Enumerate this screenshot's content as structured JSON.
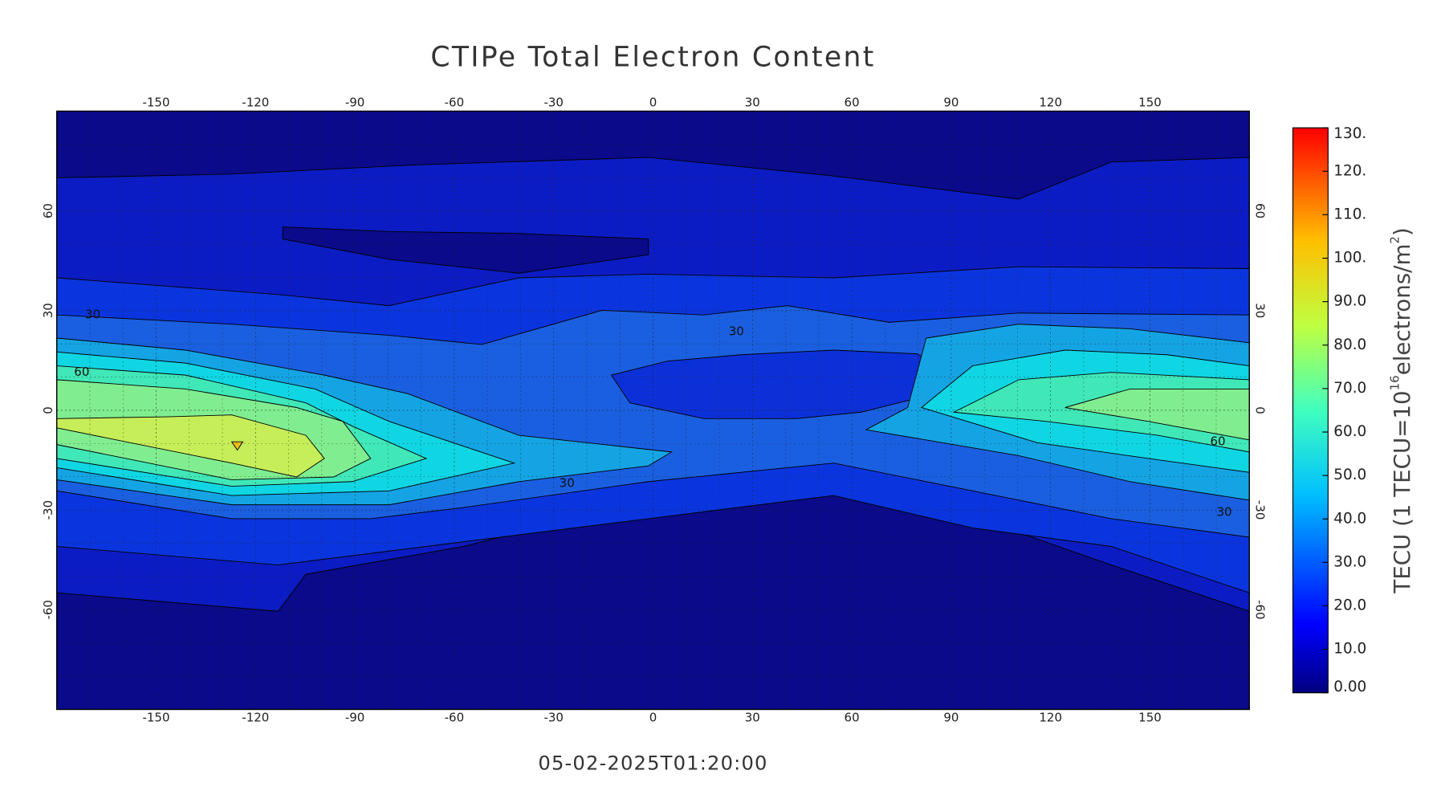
{
  "chart_data": {
    "type": "contour",
    "title": "CTIPe Total Electron Content",
    "timestamp": "05-02-2025T01:20:00",
    "xlim": [
      -180,
      180
    ],
    "ylim": [
      -90,
      90
    ],
    "xticks": [
      -150,
      -120,
      -90,
      -60,
      -30,
      0,
      30,
      60,
      90,
      120,
      150
    ],
    "yticks": [
      -60,
      -30,
      0,
      30,
      60
    ],
    "grid": true,
    "contour_labels": [
      30,
      60,
      30,
      30,
      60,
      30
    ],
    "colorbar": {
      "label": [
        "TECU (1 TECU=10",
        "16",
        "electrons/m",
        "2",
        ")"
      ],
      "zlim": [
        0,
        130
      ],
      "zticks": [
        {
          "value": 0,
          "label": "0.00"
        },
        {
          "value": 10,
          "label": "10.0"
        },
        {
          "value": 20,
          "label": "20.0"
        },
        {
          "value": 30,
          "label": "30.0"
        },
        {
          "value": 40,
          "label": "40.0"
        },
        {
          "value": 50,
          "label": "50.0"
        },
        {
          "value": 60,
          "label": "60.0"
        },
        {
          "value": 70,
          "label": "70.0"
        },
        {
          "value": 80,
          "label": "80.0"
        },
        {
          "value": 90,
          "label": "90.0"
        },
        {
          "value": 100,
          "label": "100."
        },
        {
          "value": 110,
          "label": "110."
        },
        {
          "value": 120,
          "label": "120."
        },
        {
          "value": 130,
          "label": "130."
        }
      ]
    }
  }
}
